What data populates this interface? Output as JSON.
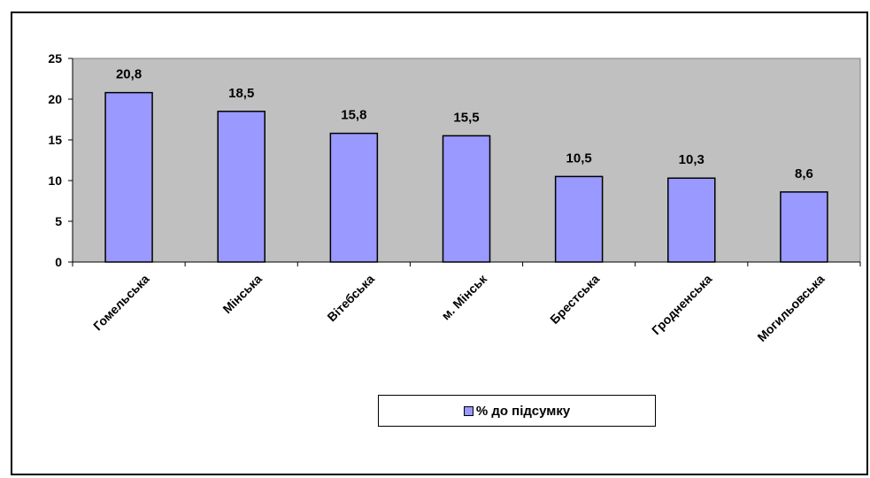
{
  "chart_data": {
    "type": "bar",
    "categories": [
      "Гомельська",
      "Мінська",
      "Вітебська",
      "м. Мінськ",
      "Брестська",
      "Гродненська",
      "Могильовська"
    ],
    "series": [
      {
        "name": "% до підсумку",
        "values": [
          20.8,
          18.5,
          15.8,
          15.5,
          10.5,
          10.3,
          8.6
        ]
      }
    ],
    "data_labels": [
      "20,8",
      "18,5",
      "15,8",
      "15,5",
      "10,5",
      "10,3",
      "8,6"
    ],
    "y_ticks": [
      "0",
      "5",
      "10",
      "15",
      "20",
      "25"
    ],
    "ylim": [
      0,
      25
    ],
    "title": "",
    "xlabel": "",
    "ylabel": "",
    "grid": false,
    "legend_position": "bottom",
    "colors": {
      "bar_fill": "#9999ff",
      "plot_background": "#c0c0c0",
      "outline": "#000000"
    }
  }
}
